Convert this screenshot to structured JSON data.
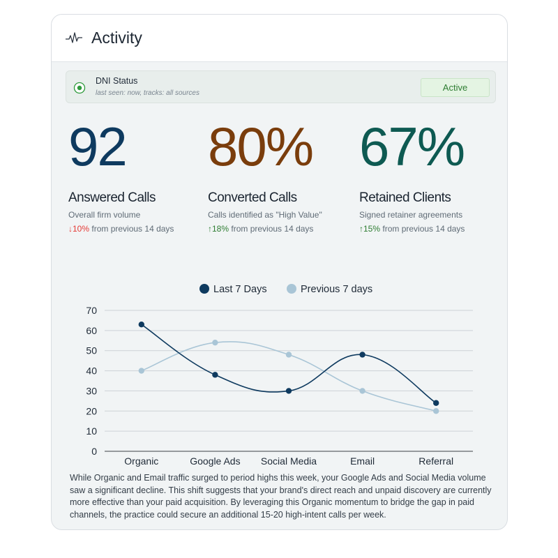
{
  "header": {
    "title": "Activity",
    "icon": "pulse-icon"
  },
  "dni": {
    "title": "DNI Status",
    "subtitle": "last seen: now, tracks: all sources",
    "status": "Active",
    "colors": {
      "status_bg": "#e4f4e3",
      "status_text": "#2e7d32",
      "radio": "#2e9a3c"
    }
  },
  "metrics": [
    {
      "value": "92",
      "label": "Answered Calls",
      "description": "Overall firm volume",
      "arrow": "↓",
      "change": "10%",
      "change_suffix": " from previous 14 days",
      "direction": "down",
      "color": "#0e3a5f"
    },
    {
      "value": "80%",
      "label": "Converted Calls",
      "description": "Calls identified as \"High Value\"",
      "arrow": "↑",
      "change": "18%",
      "change_suffix": " from previous 14 days",
      "direction": "up",
      "color": "#7a3d0c"
    },
    {
      "value": "67%",
      "label": "Retained Clients",
      "description": "Signed retainer agreements",
      "arrow": "↑",
      "change": "15%",
      "change_suffix": " from previous 14 days",
      "direction": "up",
      "color": "#0e5a52"
    }
  ],
  "chart_data": {
    "type": "line",
    "categories": [
      "Organic",
      "Google Ads",
      "Social Media",
      "Email",
      "Referral"
    ],
    "series": [
      {
        "name": "Last 7 Days",
        "values": [
          63,
          38,
          30,
          48,
          24
        ],
        "color": "#0e3a5f"
      },
      {
        "name": "Previous 7 days",
        "values": [
          40,
          54,
          48,
          30,
          20
        ],
        "color": "#a9c5d6"
      }
    ],
    "ylim": [
      0,
      70
    ],
    "yticks": [
      0,
      10,
      20,
      30,
      40,
      50,
      60,
      70
    ],
    "grid": true,
    "legend": "top-center",
    "smooth": true
  },
  "summary": "While Organic and Email traffic surged to period highs this week, your Google Ads and Social Media volume saw a significant decline. This shift suggests that your brand's direct reach and unpaid discovery are currently more effective than your paid acquisition. By leveraging this Organic momentum to bridge the gap in paid channels, the practice could secure an additional 15-20 high-intent calls per week."
}
